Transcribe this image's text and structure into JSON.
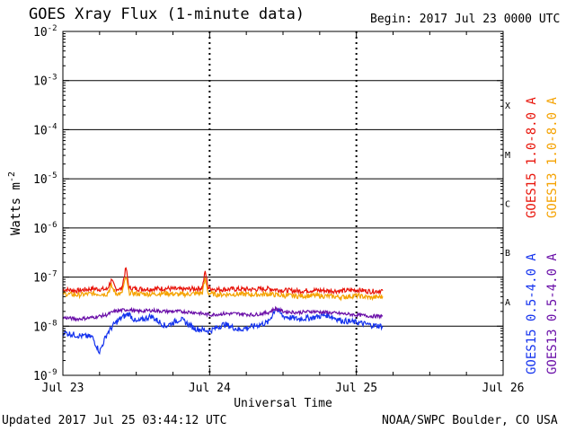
{
  "header": {
    "title": "GOES Xray Flux (1-minute data)",
    "begin": "Begin:  2017 Jul 23 0000 UTC"
  },
  "footer": {
    "updated": "Updated 2017 Jul 25 03:44:12 UTC",
    "credit": "NOAA/SWPC Boulder, CO USA"
  },
  "colors": {
    "goes15_long": "#e8140a",
    "goes13_long": "#f5a200",
    "goes15_short": "#1533ee",
    "goes13_short": "#6a0fa8",
    "grid": "#000000"
  },
  "chart_data": {
    "type": "line",
    "title": "GOES Xray Flux (1-minute data)",
    "xlabel": "Universal Time",
    "ylabel": "Watts m",
    "ylabel_superscript": "-2",
    "y_scale": "log",
    "ylim": [
      1e-09,
      0.01
    ],
    "xlim_days": [
      0,
      3
    ],
    "x_ticks": [
      {
        "day": 0,
        "label": "Jul 23"
      },
      {
        "day": 1,
        "label": "Jul 24"
      },
      {
        "day": 2,
        "label": "Jul 25"
      },
      {
        "day": 3,
        "label": "Jul 26"
      }
    ],
    "y_ticks": [
      {
        "exp": -2,
        "label": "10",
        "sup": "-2"
      },
      {
        "exp": -3,
        "label": "10",
        "sup": "-3"
      },
      {
        "exp": -4,
        "label": "10",
        "sup": "-4"
      },
      {
        "exp": -5,
        "label": "10",
        "sup": "-5"
      },
      {
        "exp": -6,
        "label": "10",
        "sup": "-6"
      },
      {
        "exp": -7,
        "label": "10",
        "sup": "-7"
      },
      {
        "exp": -8,
        "label": "10",
        "sup": "-8"
      },
      {
        "exp": -9,
        "label": "10",
        "sup": "-9"
      }
    ],
    "flare_classes": [
      {
        "label": "X",
        "exp": -3.5
      },
      {
        "label": "M",
        "exp": -4.5
      },
      {
        "label": "C",
        "exp": -5.5
      },
      {
        "label": "B",
        "exp": -6.5
      },
      {
        "label": "A",
        "exp": -7.5
      }
    ],
    "series": [
      {
        "name": "GOES15 1.0-8.0 A",
        "color": "#e8140a",
        "x": [
          0,
          0.1,
          0.2,
          0.3,
          0.33,
          0.36,
          0.4,
          0.43,
          0.45,
          0.5,
          0.6,
          0.7,
          0.8,
          0.9,
          0.95,
          0.97,
          0.99,
          1.05,
          1.2,
          1.3,
          1.4,
          1.5,
          1.6,
          1.7,
          1.8,
          1.9,
          2.0,
          2.1,
          2.18
        ],
        "y": [
          5.6e-08,
          5.3e-08,
          5.8e-08,
          5.6e-08,
          8.5e-08,
          5.9e-08,
          5.6e-08,
          1.55e-07,
          6e-08,
          5.8e-08,
          5.7e-08,
          5.9e-08,
          5.6e-08,
          5.8e-08,
          6e-08,
          1.3e-07,
          6e-08,
          5.6e-08,
          5.7e-08,
          5.6e-08,
          5.8e-08,
          5.4e-08,
          5.2e-08,
          5.4e-08,
          5.3e-08,
          5.2e-08,
          5.5e-08,
          5.1e-08,
          5.3e-08
        ]
      },
      {
        "name": "GOES13 1.0-8.0 A",
        "color": "#f5a200",
        "x": [
          0,
          0.1,
          0.2,
          0.3,
          0.33,
          0.36,
          0.4,
          0.43,
          0.45,
          0.5,
          0.6,
          0.7,
          0.8,
          0.9,
          0.95,
          0.97,
          0.99,
          1.05,
          1.2,
          1.3,
          1.4,
          1.5,
          1.6,
          1.7,
          1.8,
          1.9,
          2.0,
          2.1,
          2.18
        ],
        "y": [
          4.6e-08,
          4.3e-08,
          4.6e-08,
          4.5e-08,
          6.5e-08,
          4.7e-08,
          4.5e-08,
          1e-07,
          4.8e-08,
          4.6e-08,
          4.5e-08,
          4.7e-08,
          4.4e-08,
          4.6e-08,
          4.8e-08,
          9e-08,
          4.7e-08,
          4.4e-08,
          4.5e-08,
          4.4e-08,
          4.5e-08,
          4.2e-08,
          4.1e-08,
          4.2e-08,
          4.1e-08,
          3.9e-08,
          4.2e-08,
          3.8e-08,
          4e-08
        ]
      },
      {
        "name": "GOES15 0.5-4.0 A",
        "color": "#1533ee",
        "x": [
          0,
          0.1,
          0.2,
          0.25,
          0.3,
          0.35,
          0.4,
          0.45,
          0.5,
          0.6,
          0.7,
          0.8,
          0.9,
          1.0,
          1.1,
          1.2,
          1.3,
          1.4,
          1.45,
          1.5,
          1.6,
          1.7,
          1.8,
          1.9,
          2.0,
          2.1,
          2.18
        ],
        "y": [
          7.5e-09,
          6.5e-09,
          6e-09,
          3e-09,
          7e-09,
          1.1e-08,
          1.5e-08,
          1.8e-08,
          1.2e-08,
          1.6e-08,
          1e-08,
          1.4e-08,
          9e-09,
          8e-09,
          1.1e-08,
          8.5e-09,
          1e-08,
          1.2e-08,
          2.3e-08,
          1.6e-08,
          1.4e-08,
          1.5e-08,
          1.7e-08,
          1.3e-08,
          1.2e-08,
          1.05e-08,
          1e-08
        ]
      },
      {
        "name": "GOES13 0.5-4.0 A",
        "color": "#6a0fa8",
        "x": [
          0,
          0.1,
          0.2,
          0.3,
          0.35,
          0.4,
          0.45,
          0.5,
          0.6,
          0.7,
          0.8,
          0.9,
          1.0,
          1.1,
          1.2,
          1.3,
          1.4,
          1.45,
          1.5,
          1.6,
          1.7,
          1.8,
          1.9,
          2.0,
          2.1,
          2.18
        ],
        "y": [
          1.5e-08,
          1.4e-08,
          1.5e-08,
          1.7e-08,
          2e-08,
          2.1e-08,
          2.2e-08,
          2e-08,
          2.1e-08,
          2e-08,
          2e-08,
          1.9e-08,
          1.7e-08,
          1.8e-08,
          1.8e-08,
          1.7e-08,
          1.9e-08,
          2.3e-08,
          2e-08,
          1.9e-08,
          2e-08,
          1.9e-08,
          1.8e-08,
          1.7e-08,
          1.6e-08,
          1.6e-08
        ]
      }
    ]
  }
}
